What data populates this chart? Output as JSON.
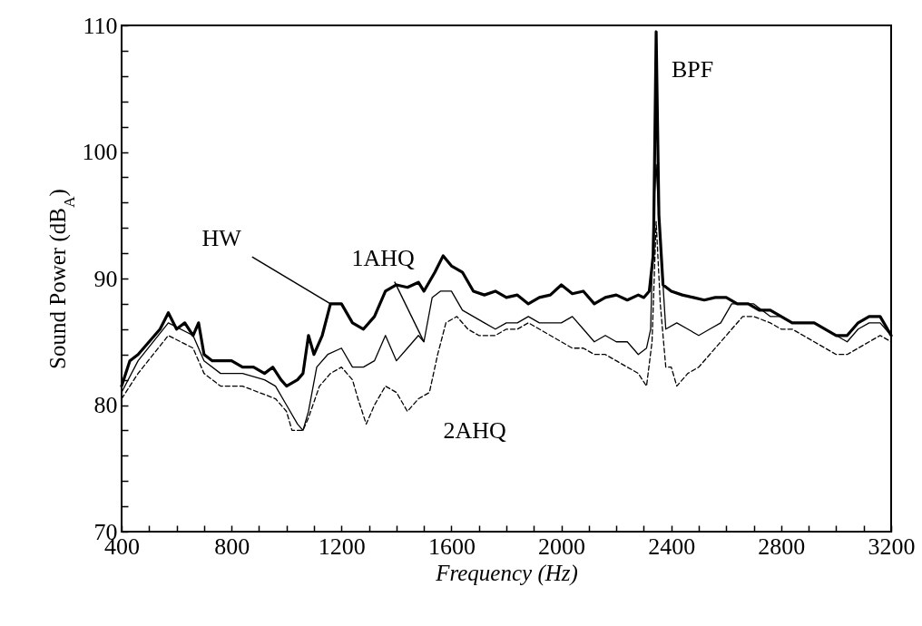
{
  "chart_data": {
    "type": "line",
    "xlabel": "Frequency (Hz)",
    "ylabel": "Sound Power (dB$_{A}$)",
    "xlim": [
      400,
      3200
    ],
    "ylim": [
      70,
      110
    ],
    "xticks": [
      400,
      {
        "value": 500,
        "label": null
      },
      {
        "value": 600,
        "label": null
      },
      {
        "value": 700,
        "label": null
      },
      800,
      {
        "value": 900,
        "label": null
      },
      {
        "value": 1000,
        "label": null
      },
      {
        "value": 1100,
        "label": null
      },
      1200,
      {
        "value": 1300,
        "label": null
      },
      {
        "value": 1400,
        "label": null
      },
      {
        "value": 1500,
        "label": null
      },
      1600,
      {
        "value": 1700,
        "label": null
      },
      {
        "value": 1800,
        "label": null
      },
      {
        "value": 1900,
        "label": null
      },
      2000,
      {
        "value": 2100,
        "label": null
      },
      {
        "value": 2200,
        "label": null
      },
      {
        "value": 2300,
        "label": null
      },
      2400,
      {
        "value": 2500,
        "label": null
      },
      {
        "value": 2600,
        "label": null
      },
      {
        "value": 2700,
        "label": null
      },
      2800,
      {
        "value": 2900,
        "label": null
      },
      {
        "value": 3000,
        "label": null
      },
      {
        "value": 3100,
        "label": null
      },
      3200
    ],
    "yticks": [
      70,
      {
        "value": 72,
        "label": null
      },
      {
        "value": 74,
        "label": null
      },
      {
        "value": 76,
        "label": null
      },
      {
        "value": 78,
        "label": null
      },
      80,
      {
        "value": 82,
        "label": null
      },
      {
        "value": 84,
        "label": null
      },
      {
        "value": 86,
        "label": null
      },
      {
        "value": 88,
        "label": null
      },
      90,
      {
        "value": 92,
        "label": null
      },
      {
        "value": 94,
        "label": null
      },
      {
        "value": 96,
        "label": null
      },
      {
        "value": 98,
        "label": null
      },
      100,
      {
        "value": 102,
        "label": null
      },
      {
        "value": 104,
        "label": null
      },
      {
        "value": 106,
        "label": null
      },
      {
        "value": 108,
        "label": null
      },
      110
    ],
    "grid": false,
    "marker": "none",
    "annotations": [
      {
        "text": "HW",
        "x": 1160,
        "y": 88
      },
      {
        "text": "1AHQ",
        "x": 1500,
        "y": 85
      },
      {
        "text": "2AHQ",
        "x": 1480,
        "y": 80
      },
      {
        "text": "BPF",
        "x": 2345,
        "y": 109.5
      }
    ],
    "series": [
      {
        "color": "#000000",
        "line_style": "solid",
        "x": [
          400,
          430,
          460,
          500,
          540,
          570,
          600,
          630,
          660,
          680,
          700,
          730,
          760,
          800,
          840,
          880,
          920,
          950,
          980,
          1000,
          1040,
          1060,
          1080,
          1100,
          1130,
          1160,
          1200,
          1240,
          1280,
          1320,
          1360,
          1400,
          1440,
          1480,
          1500,
          1540,
          1570,
          1600,
          1640,
          1680,
          1720,
          1760,
          1800,
          1840,
          1880,
          1920,
          1960,
          2000,
          2040,
          2080,
          2120,
          2160,
          2200,
          2240,
          2280,
          2300,
          2320,
          2335,
          2345,
          2355,
          2370,
          2400,
          2440,
          2480,
          2520,
          2560,
          2600,
          2640,
          2680,
          2720,
          2760,
          2800,
          2840,
          2880,
          2920,
          2960,
          3000,
          3040,
          3080,
          3120,
          3160,
          3200
        ],
        "values": [
          81.5,
          83.5,
          84,
          85,
          86,
          87.3,
          86,
          86.5,
          85.5,
          86.5,
          84,
          83.5,
          83.5,
          83.5,
          83,
          83,
          82.5,
          83,
          82,
          81.5,
          82,
          82.5,
          85.5,
          84,
          85.5,
          88,
          88,
          86.5,
          86,
          87,
          89,
          89.5,
          89.3,
          89.7,
          89,
          90.5,
          91.8,
          91,
          90.5,
          89,
          88.7,
          89,
          88.5,
          88.7,
          88,
          88.5,
          88.7,
          89.5,
          88.8,
          89,
          88,
          88.5,
          88.7,
          88.3,
          88.7,
          88.5,
          89,
          92,
          109.5,
          95,
          89.5,
          89,
          88.7,
          88.5,
          88.3,
          88.5,
          88.5,
          88,
          88,
          87.5,
          87.5,
          87,
          86.5,
          86.5,
          86.5,
          86,
          85.5,
          85.5,
          86.5,
          87,
          87,
          85.5
        ]
      },
      {
        "color": "#000000",
        "line_style": "solid",
        "x": [
          400,
          460,
          570,
          660,
          700,
          760,
          840,
          920,
          960,
          1000,
          1040,
          1060,
          1080,
          1110,
          1150,
          1200,
          1240,
          1280,
          1320,
          1360,
          1400,
          1440,
          1480,
          1500,
          1530,
          1560,
          1600,
          1640,
          1680,
          1720,
          1760,
          1800,
          1840,
          1880,
          1920,
          1960,
          2000,
          2040,
          2080,
          2120,
          2160,
          2200,
          2240,
          2280,
          2310,
          2325,
          2335,
          2345,
          2360,
          2380,
          2420,
          2460,
          2500,
          2540,
          2580,
          2620,
          2660,
          2700,
          2760,
          2800,
          2840,
          2880,
          2920,
          2960,
          3000,
          3040,
          3080,
          3120,
          3160,
          3200
        ],
        "values": [
          81,
          83.5,
          86.5,
          85.5,
          83.5,
          82.5,
          82.5,
          82,
          81.5,
          80,
          78.5,
          78,
          79.5,
          83,
          84,
          84.5,
          83,
          83,
          83.5,
          85.5,
          83.5,
          84.5,
          85.5,
          85,
          88.5,
          89,
          89,
          87.5,
          87,
          86.5,
          86,
          86.5,
          86.5,
          87,
          86.5,
          86.5,
          86.5,
          87,
          86,
          85,
          85.5,
          85,
          85,
          84,
          84.5,
          86,
          95,
          99,
          93,
          86,
          86.5,
          86,
          85.5,
          86,
          86.5,
          88,
          88,
          88,
          87,
          87,
          86.5,
          86.5,
          86.5,
          86,
          85.5,
          85,
          86,
          86.5,
          86.5,
          85.5
        ]
      },
      {
        "color": "#000000",
        "line_style": "dashed",
        "x": [
          400,
          460,
          570,
          660,
          700,
          760,
          840,
          900,
          960,
          1000,
          1020,
          1060,
          1080,
          1120,
          1160,
          1200,
          1240,
          1260,
          1290,
          1320,
          1360,
          1400,
          1440,
          1480,
          1520,
          1550,
          1580,
          1620,
          1660,
          1700,
          1760,
          1800,
          1840,
          1880,
          1920,
          1960,
          2000,
          2040,
          2080,
          2120,
          2160,
          2200,
          2240,
          2280,
          2310,
          2330,
          2345,
          2360,
          2380,
          2400,
          2420,
          2460,
          2500,
          2540,
          2580,
          2620,
          2660,
          2700,
          2760,
          2800,
          2840,
          2880,
          2920,
          2960,
          3000,
          3040,
          3080,
          3120,
          3160,
          3200
        ],
        "values": [
          80.5,
          82.5,
          85.5,
          84.5,
          82.5,
          81.5,
          81.5,
          81,
          80.5,
          79.5,
          78,
          78,
          79,
          81.5,
          82.5,
          83,
          82,
          80.5,
          78.5,
          80,
          81.5,
          81,
          79.5,
          80.5,
          81,
          84,
          86.5,
          87,
          86,
          85.5,
          85.5,
          86,
          86,
          86.5,
          86,
          85.5,
          85,
          84.5,
          84.5,
          84,
          84,
          83.5,
          83,
          82.5,
          81.5,
          85,
          94.5,
          88,
          83,
          83,
          81.5,
          82.5,
          83,
          84,
          85,
          86,
          87,
          87,
          86.5,
          86,
          86,
          85.5,
          85,
          84.5,
          84,
          84,
          84.5,
          85,
          85.5,
          85
        ]
      }
    ]
  }
}
